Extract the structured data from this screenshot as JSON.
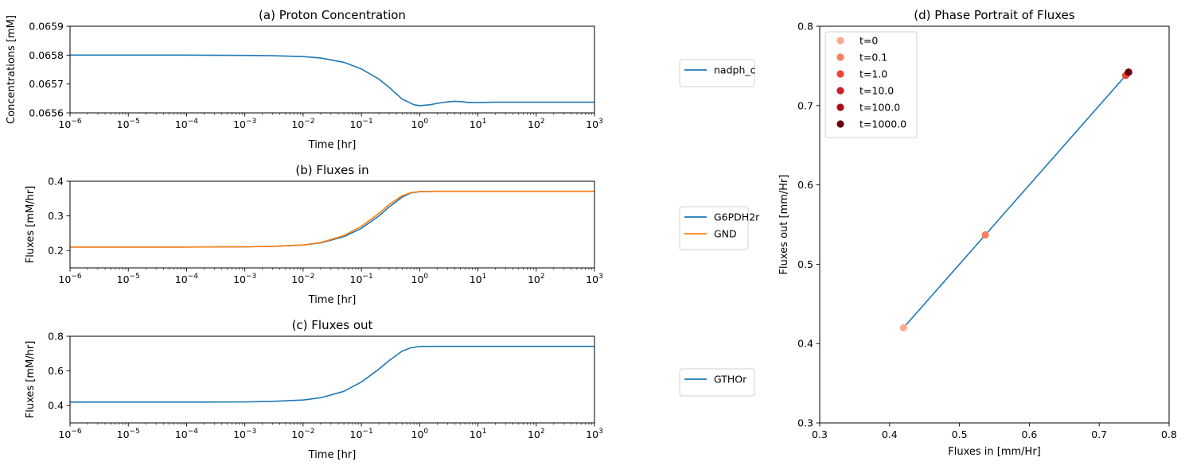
{
  "chart_data": [
    {
      "id": "a",
      "type": "line",
      "title": "(a) Proton Concentration",
      "xlabel": "Time [hr]",
      "ylabel": "Concentrations [mM]",
      "xscale": "log",
      "xlim": [
        1e-06,
        1000
      ],
      "ylim": [
        0.0656,
        0.0659
      ],
      "yticks": [
        "0.0656",
        "0.0657",
        "0.0658",
        "0.0659"
      ],
      "xtick_exponents": [
        "−6",
        "−5",
        "−4",
        "−3",
        "−2",
        "−1",
        "0",
        "1",
        "2",
        "3"
      ],
      "legend_placement": "outside-right",
      "series": [
        {
          "name": "nadph_c",
          "color": "#1f77b4",
          "x": [
            1e-06,
            0.0001,
            0.001,
            0.003,
            0.01,
            0.02,
            0.05,
            0.1,
            0.2,
            0.3,
            0.5,
            0.8,
            1.0,
            1.5,
            2,
            3,
            4,
            5,
            7,
            10,
            20,
            100,
            1000
          ],
          "y": [
            0.0658,
            0.0658,
            0.065799,
            0.065798,
            0.065795,
            0.06579,
            0.065775,
            0.065752,
            0.065717,
            0.065688,
            0.065648,
            0.065628,
            0.065625,
            0.065628,
            0.065633,
            0.065638,
            0.06564,
            0.065639,
            0.065636,
            0.065636,
            0.065637,
            0.065637,
            0.065637
          ]
        }
      ]
    },
    {
      "id": "b",
      "type": "line",
      "title": "(b) Fluxes in",
      "xlabel": "Time [hr]",
      "ylabel": "Fluxes [mM/hr]",
      "xscale": "log",
      "xlim": [
        1e-06,
        1000
      ],
      "ylim": [
        0.15,
        0.4
      ],
      "yticks": [
        "0.2",
        "0.3",
        "0.4"
      ],
      "xtick_exponents": [
        "−6",
        "−5",
        "−4",
        "−3",
        "−2",
        "−1",
        "0",
        "1",
        "2",
        "3"
      ],
      "legend_placement": "outside-right",
      "series": [
        {
          "name": "G6PDH2r",
          "color": "#1f77b4",
          "x": [
            1e-06,
            0.0001,
            0.001,
            0.003,
            0.01,
            0.02,
            0.05,
            0.1,
            0.2,
            0.3,
            0.5,
            0.7,
            1.0,
            2,
            10,
            100,
            1000
          ],
          "y": [
            0.21,
            0.21,
            0.211,
            0.212,
            0.216,
            0.222,
            0.24,
            0.264,
            0.3,
            0.326,
            0.354,
            0.366,
            0.37,
            0.371,
            0.371,
            0.371,
            0.371
          ]
        },
        {
          "name": "GND",
          "color": "#ff7f0e",
          "x": [
            1e-06,
            0.0001,
            0.001,
            0.003,
            0.01,
            0.02,
            0.05,
            0.1,
            0.2,
            0.3,
            0.5,
            0.7,
            1.0,
            2,
            10,
            100,
            1000
          ],
          "y": [
            0.21,
            0.21,
            0.211,
            0.212,
            0.216,
            0.223,
            0.243,
            0.27,
            0.307,
            0.333,
            0.358,
            0.367,
            0.37,
            0.371,
            0.371,
            0.371,
            0.371
          ]
        }
      ]
    },
    {
      "id": "c",
      "type": "line",
      "title": "(c) Fluxes out",
      "xlabel": "Time [hr]",
      "ylabel": "Fluxes [mM/hr]",
      "xscale": "log",
      "xlim": [
        1e-06,
        1000
      ],
      "ylim": [
        0.3,
        0.8
      ],
      "yticks": [
        "0.4",
        "0.6",
        "0.8"
      ],
      "xtick_exponents": [
        "−6",
        "−5",
        "−4",
        "−3",
        "−2",
        "−1",
        "0",
        "1",
        "2",
        "3"
      ],
      "legend_placement": "outside-right",
      "series": [
        {
          "name": "GTHOr",
          "color": "#1f77b4",
          "x": [
            1e-06,
            0.0001,
            0.001,
            0.003,
            0.01,
            0.02,
            0.05,
            0.1,
            0.2,
            0.3,
            0.5,
            0.7,
            1.0,
            2,
            10,
            100,
            1000
          ],
          "y": [
            0.42,
            0.42,
            0.421,
            0.424,
            0.432,
            0.445,
            0.482,
            0.536,
            0.61,
            0.66,
            0.714,
            0.733,
            0.741,
            0.742,
            0.742,
            0.742,
            0.742
          ]
        }
      ]
    },
    {
      "id": "d",
      "type": "scatter",
      "title": "(d) Phase Portrait of Fluxes",
      "xlabel": "Fluxes in [mm/Hr]",
      "ylabel": "Fluxes out [mm/Hr]",
      "xlim": [
        0.3,
        0.8
      ],
      "ylim": [
        0.3,
        0.8
      ],
      "xticks": [
        "0.3",
        "0.4",
        "0.5",
        "0.6",
        "0.7",
        "0.8"
      ],
      "yticks": [
        "0.3",
        "0.4",
        "0.5",
        "0.6",
        "0.7",
        "0.8"
      ],
      "legend_placement": "upper-left",
      "trajectory": {
        "color": "#1f77b4",
        "x": [
          0.42,
          0.537,
          0.738,
          0.742
        ],
        "y": [
          0.42,
          0.537,
          0.738,
          0.742
        ]
      },
      "points": [
        {
          "name": "t=0",
          "x": 0.42,
          "y": 0.42,
          "color": "#fcaa8d"
        },
        {
          "name": "t=0.1",
          "x": 0.537,
          "y": 0.537,
          "color": "#f6815f"
        },
        {
          "name": "t=1.0",
          "x": 0.738,
          "y": 0.738,
          "color": "#ea4533"
        },
        {
          "name": "t=10.0",
          "x": 0.742,
          "y": 0.742,
          "color": "#cf1e23"
        },
        {
          "name": "t=100.0",
          "x": 0.742,
          "y": 0.742,
          "color": "#a90f16"
        },
        {
          "name": "t=1000.0",
          "x": 0.742,
          "y": 0.742,
          "color": "#67000d"
        }
      ]
    }
  ]
}
